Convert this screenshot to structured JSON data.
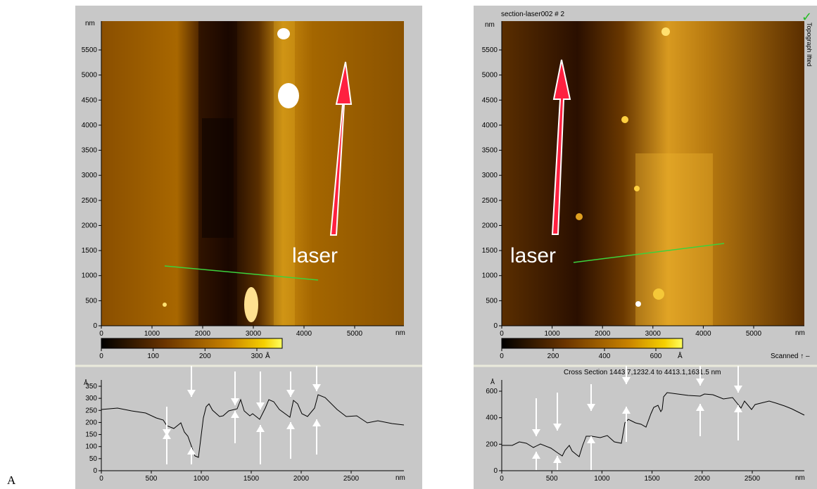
{
  "figure_label": "A",
  "left": {
    "y_unit": "nm",
    "x_unit": "nm",
    "y_ticks": [
      "5500",
      "5000",
      "4500",
      "4000",
      "3500",
      "3000",
      "2500",
      "2000",
      "1500",
      "1000",
      "500",
      "0"
    ],
    "x_ticks": [
      "0",
      "1000",
      "2000",
      "3000",
      "4000",
      "5000"
    ],
    "annotation": "laser",
    "colorbar_ticks": [
      "0",
      "100",
      "200",
      "300"
    ],
    "colorbar_unit": "Å",
    "profile": {
      "y_unit": "Å",
      "y_ticks": [
        "350",
        "300",
        "250",
        "200",
        "150",
        "100",
        "50",
        "0"
      ],
      "x_ticks": [
        "0",
        "500",
        "1000",
        "1500",
        "2000",
        "2500"
      ],
      "x_unit": "nm"
    }
  },
  "right": {
    "title": "section-laser002 # 2",
    "side_label": "Topograph Ifted",
    "y_unit": "nm",
    "x_unit": "nm",
    "y_ticks": [
      "5500",
      "5000",
      "4500",
      "4000",
      "3500",
      "3000",
      "2500",
      "2000",
      "1500",
      "1000",
      "500",
      "0"
    ],
    "x_ticks": [
      "0",
      "1000",
      "2000",
      "3000",
      "4000",
      "5000"
    ],
    "annotation": "laser",
    "colorbar_ticks": [
      "0",
      "200",
      "400",
      "600"
    ],
    "colorbar_unit": "Å",
    "scanned_label": "Scanned ↑ –",
    "cross_section_label": "Cross Section 1443.7,1232.4 to 4413.1,1631.5 nm",
    "profile": {
      "y_unit": "Å",
      "y_ticks": [
        "600",
        "400",
        "200",
        "0"
      ],
      "x_ticks": [
        "0",
        "500",
        "1000",
        "1500",
        "2000",
        "2500"
      ],
      "x_unit": "nm"
    }
  },
  "colors": {
    "panel_bg": "#c8c8c8",
    "laser_arrow": "#ff2040",
    "section_line": "#3cd23c",
    "check": "#22bb22"
  }
}
